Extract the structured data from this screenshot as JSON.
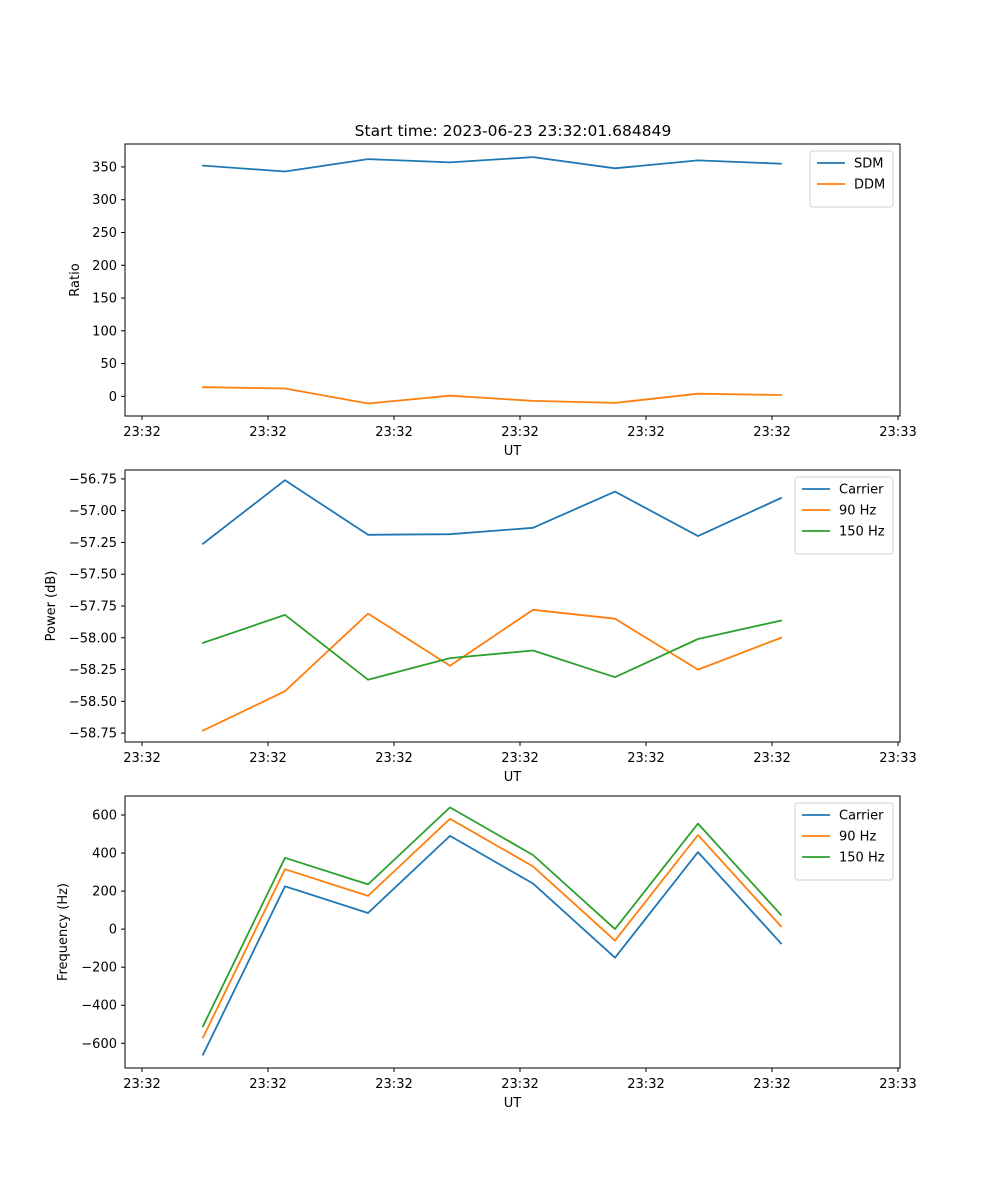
{
  "figure": {
    "title": "Start time: 2023-06-23 23:32:01.684849"
  },
  "chart_data": [
    {
      "type": "line",
      "title": "Start time: 2023-06-23 23:32:01.684849",
      "xlabel": "UT",
      "ylabel": "Ratio",
      "x_tick_labels": [
        "23:32",
        "23:32",
        "23:32",
        "23:32",
        "23:32",
        "23:32",
        "23:33"
      ],
      "yticks": [
        0,
        50,
        100,
        150,
        200,
        250,
        300,
        350
      ],
      "ylim": [
        -30,
        385
      ],
      "legend_position": "top-right",
      "series": [
        {
          "name": "SDM",
          "color": "#1f77b4",
          "values": [
            352,
            343,
            362,
            357,
            365,
            348,
            360,
            355
          ]
        },
        {
          "name": "DDM",
          "color": "#ff7f0e",
          "values": [
            14,
            12,
            -11,
            1,
            -7,
            -10,
            4,
            2
          ]
        }
      ]
    },
    {
      "type": "line",
      "xlabel": "UT",
      "ylabel": "Power (dB)",
      "x_tick_labels": [
        "23:32",
        "23:32",
        "23:32",
        "23:32",
        "23:32",
        "23:32",
        "23:33"
      ],
      "yticks": [
        -58.75,
        -58.5,
        -58.25,
        -58.0,
        -57.75,
        -57.5,
        -57.25,
        -57.0,
        -56.75
      ],
      "ytick_labels": [
        "−58.75",
        "−58.50",
        "−58.25",
        "−58.00",
        "−57.75",
        "−57.50",
        "−57.25",
        "−57.00",
        "−56.75"
      ],
      "ylim": [
        -58.82,
        -56.68
      ],
      "legend_position": "top-right",
      "series": [
        {
          "name": "Carrier",
          "color": "#1f77b4",
          "values": [
            -57.26,
            -56.76,
            -57.19,
            -57.185,
            -57.135,
            -56.85,
            -57.2,
            -56.9
          ]
        },
        {
          "name": "90 Hz",
          "color": "#ff7f0e",
          "values": [
            -58.73,
            -58.42,
            -57.81,
            -58.22,
            -57.78,
            -57.85,
            -58.25,
            -58.0
          ]
        },
        {
          "name": "150 Hz",
          "color": "#2ca02c",
          "values": [
            -58.04,
            -57.82,
            -58.33,
            -58.16,
            -58.1,
            -58.31,
            -58.01,
            -57.865
          ]
        }
      ]
    },
    {
      "type": "line",
      "xlabel": "UT",
      "ylabel": "Frequency (Hz)",
      "x_tick_labels": [
        "23:32",
        "23:32",
        "23:32",
        "23:32",
        "23:32",
        "23:32",
        "23:33"
      ],
      "yticks": [
        -600,
        -400,
        -200,
        0,
        200,
        400,
        600
      ],
      "ytick_labels": [
        "−600",
        "−400",
        "−200",
        "0",
        "200",
        "400",
        "600"
      ],
      "ylim": [
        -730,
        700
      ],
      "legend_position": "top-right",
      "series": [
        {
          "name": "Carrier",
          "color": "#1f77b4",
          "values": [
            -660,
            225,
            85,
            490,
            240,
            -150,
            405,
            -75
          ]
        },
        {
          "name": "90 Hz",
          "color": "#ff7f0e",
          "values": [
            -570,
            315,
            175,
            580,
            330,
            -60,
            495,
            15
          ]
        },
        {
          "name": "150 Hz",
          "color": "#2ca02c",
          "values": [
            -510,
            375,
            235,
            640,
            390,
            0,
            555,
            75
          ]
        }
      ]
    }
  ]
}
